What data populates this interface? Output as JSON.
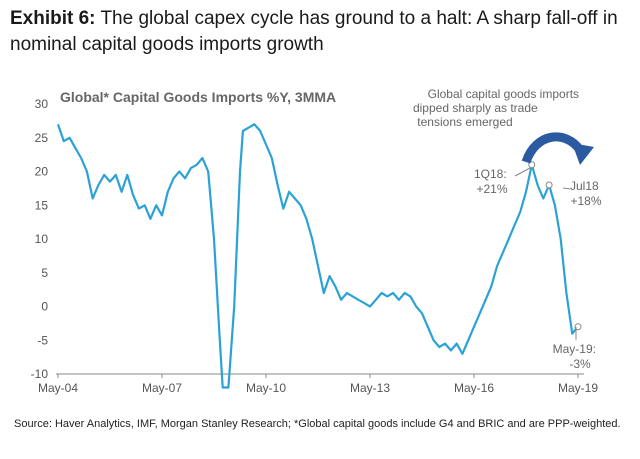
{
  "exhibit": {
    "label": "Exhibit 6:",
    "title": "The global capex cycle has ground to a halt: A sharp fall-off in nominal capital goods imports growth"
  },
  "source": "Source: Haver Analytics, IMF, Morgan Stanley Research; *Global capital goods include G4 and BRIC and are PPP-weighted.",
  "chart_data": {
    "type": "line",
    "title": "Global* Capital Goods Imports %Y, 3MMA",
    "xlabel": "",
    "ylabel": "",
    "ylim": [
      -10,
      30
    ],
    "yticks": [
      30,
      25,
      20,
      15,
      10,
      5,
      0,
      -5,
      -10
    ],
    "xlim": [
      "2004-05",
      "2019-05"
    ],
    "xticks": [
      "May-04",
      "May-07",
      "May-10",
      "May-13",
      "May-16",
      "May-19"
    ],
    "line_color": "#2ba2d6",
    "grid": false,
    "series": [
      {
        "points": [
          [
            "2004-05",
            27
          ],
          [
            "2004-07",
            24.5
          ],
          [
            "2004-09",
            25
          ],
          [
            "2004-11",
            23.5
          ],
          [
            "2005-01",
            22
          ],
          [
            "2005-03",
            20
          ],
          [
            "2005-05",
            16
          ],
          [
            "2005-07",
            18
          ],
          [
            "2005-09",
            19.5
          ],
          [
            "2005-11",
            18.5
          ],
          [
            "2006-01",
            19.5
          ],
          [
            "2006-03",
            17
          ],
          [
            "2006-05",
            19.5
          ],
          [
            "2006-07",
            16.5
          ],
          [
            "2006-09",
            14.5
          ],
          [
            "2006-11",
            15
          ],
          [
            "2007-01",
            13
          ],
          [
            "2007-03",
            15
          ],
          [
            "2007-05",
            13.5
          ],
          [
            "2007-07",
            17
          ],
          [
            "2007-09",
            19
          ],
          [
            "2007-11",
            20
          ],
          [
            "2008-01",
            19
          ],
          [
            "2008-03",
            20.5
          ],
          [
            "2008-05",
            21
          ],
          [
            "2008-07",
            22
          ],
          [
            "2008-09",
            20
          ],
          [
            "2008-11",
            10
          ],
          [
            "2009-01",
            -5
          ],
          [
            "2009-02",
            -12
          ],
          [
            "2009-04",
            -12
          ],
          [
            "2009-06",
            0
          ],
          [
            "2009-07",
            10
          ],
          [
            "2009-08",
            20
          ],
          [
            "2009-09",
            26
          ],
          [
            "2009-11",
            26.5
          ],
          [
            "2010-01",
            27
          ],
          [
            "2010-03",
            26
          ],
          [
            "2010-05",
            24
          ],
          [
            "2010-07",
            22
          ],
          [
            "2010-09",
            18
          ],
          [
            "2010-11",
            14.5
          ],
          [
            "2011-01",
            17
          ],
          [
            "2011-03",
            16
          ],
          [
            "2011-05",
            15
          ],
          [
            "2011-07",
            13
          ],
          [
            "2011-09",
            10
          ],
          [
            "2011-11",
            6
          ],
          [
            "2012-01",
            2
          ],
          [
            "2012-03",
            4.5
          ],
          [
            "2012-05",
            3
          ],
          [
            "2012-07",
            1
          ],
          [
            "2012-09",
            2
          ],
          [
            "2012-11",
            1.5
          ],
          [
            "2013-01",
            1
          ],
          [
            "2013-03",
            0.5
          ],
          [
            "2013-05",
            0
          ],
          [
            "2013-07",
            1
          ],
          [
            "2013-09",
            2
          ],
          [
            "2013-11",
            1.5
          ],
          [
            "2014-01",
            2
          ],
          [
            "2014-03",
            1
          ],
          [
            "2014-05",
            2
          ],
          [
            "2014-07",
            1.5
          ],
          [
            "2014-09",
            0
          ],
          [
            "2014-11",
            -1
          ],
          [
            "2015-01",
            -3
          ],
          [
            "2015-03",
            -5
          ],
          [
            "2015-05",
            -6
          ],
          [
            "2015-07",
            -5.5
          ],
          [
            "2015-09",
            -6.5
          ],
          [
            "2015-11",
            -5.5
          ],
          [
            "2016-01",
            -7
          ],
          [
            "2016-03",
            -5
          ],
          [
            "2016-05",
            -3
          ],
          [
            "2016-07",
            -1
          ],
          [
            "2016-09",
            1
          ],
          [
            "2016-11",
            3
          ],
          [
            "2017-01",
            6
          ],
          [
            "2017-03",
            8
          ],
          [
            "2017-05",
            10
          ],
          [
            "2017-07",
            12
          ],
          [
            "2017-09",
            14
          ],
          [
            "2017-11",
            17
          ],
          [
            "2018-01",
            21
          ],
          [
            "2018-03",
            18
          ],
          [
            "2018-05",
            16
          ],
          [
            "2018-07",
            18
          ],
          [
            "2018-09",
            15
          ],
          [
            "2018-11",
            10
          ],
          [
            "2019-01",
            2
          ],
          [
            "2019-03",
            -4
          ],
          [
            "2019-05",
            -3
          ]
        ]
      }
    ],
    "annotations": [
      {
        "text": "Global capital goods imports dipped sharply as trade tensions emerged"
      },
      {
        "label": "1Q18:",
        "value": "+21%",
        "x": "2018-01",
        "y": 21
      },
      {
        "label": "Jul18",
        "value": "+18%",
        "x": "2018-07",
        "y": 18
      },
      {
        "label": "May-19:",
        "value": "-3%",
        "x": "2019-05",
        "y": -3
      }
    ]
  }
}
